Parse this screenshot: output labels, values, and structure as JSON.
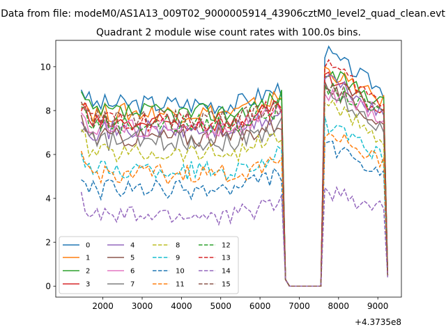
{
  "chart_data": {
    "type": "line",
    "suptitle": "Data from file: modeM0/AS1A13_009T02_9000005914_43906cztM0_level2_quad_clean.evt",
    "title": "Quadrant 2 module wise count rates with 100.0s bins.",
    "xlabel": "",
    "ylabel": "",
    "x_offset_label": "+4.3735e8",
    "x_offset": 437350000,
    "xlim": [
      800,
      9600
    ],
    "ylim": [
      -0.5,
      11.2
    ],
    "xticks": [
      "2000",
      "3000",
      "4000",
      "5000",
      "6000",
      "7000",
      "8000",
      "9000"
    ],
    "yticks": [
      "0",
      "2",
      "4",
      "6",
      "8",
      "10"
    ],
    "grid": false,
    "legend_position": "lower-left",
    "legend_columns": 4,
    "bin_seconds": 100.0,
    "x": {
      "start": 1450,
      "step": 100,
      "points": 79,
      "gap_from": 6650,
      "gap_to": 7550
    },
    "series": [
      {
        "name": "0",
        "color": "#1f77b4",
        "dash": "solid",
        "base": 8.3,
        "peak": 10.6,
        "end": 0.6
      },
      {
        "name": "1",
        "color": "#ff7f0e",
        "dash": "solid",
        "base": 7.9,
        "peak": 9.8,
        "end": 0.5
      },
      {
        "name": "2",
        "color": "#2ca02c",
        "dash": "solid",
        "base": 7.9,
        "peak": 9.7,
        "end": 0.5
      },
      {
        "name": "3",
        "color": "#d62728",
        "dash": "solid",
        "base": 7.4,
        "peak": 9.4,
        "end": 0.5
      },
      {
        "name": "4",
        "color": "#9467bd",
        "dash": "solid",
        "base": 7.1,
        "peak": 9.5,
        "end": 0.5
      },
      {
        "name": "5",
        "color": "#8c564b",
        "dash": "solid",
        "base": 6.8,
        "peak": 9.0,
        "end": 0.5
      },
      {
        "name": "6",
        "color": "#e377c2",
        "dash": "solid",
        "base": 7.2,
        "peak": 8.8,
        "end": 0.5
      },
      {
        "name": "7",
        "color": "#7f7f7f",
        "dash": "solid",
        "base": 6.6,
        "peak": 8.8,
        "end": 0.5
      },
      {
        "name": "8",
        "color": "#bcbd22",
        "dash": "dashed",
        "base": 6.1,
        "peak": 8.3,
        "end": 0.5
      },
      {
        "name": "9",
        "color": "#17becf",
        "dash": "dashed",
        "base": 5.3,
        "peak": 7.3,
        "end": 0.5
      },
      {
        "name": "10",
        "color": "#1f77b4",
        "dash": "dashed",
        "base": 4.4,
        "peak": 6.4,
        "end": 0.4
      },
      {
        "name": "11",
        "color": "#ff7f0e",
        "dash": "dashed",
        "base": 5.1,
        "peak": 7.0,
        "end": 0.4
      },
      {
        "name": "12",
        "color": "#2ca02c",
        "dash": "dashed",
        "base": 7.4,
        "peak": 9.0,
        "end": 0.5
      },
      {
        "name": "13",
        "color": "#d62728",
        "dash": "dashed",
        "base": 7.5,
        "peak": 10.1,
        "end": 0.5
      },
      {
        "name": "14",
        "color": "#9467bd",
        "dash": "dashed",
        "base": 3.2,
        "peak": 4.3,
        "end": 0.4
      },
      {
        "name": "15",
        "color": "#8c564b",
        "dash": "dashed",
        "base": 7.6,
        "peak": 9.2,
        "end": 0.5
      }
    ]
  }
}
